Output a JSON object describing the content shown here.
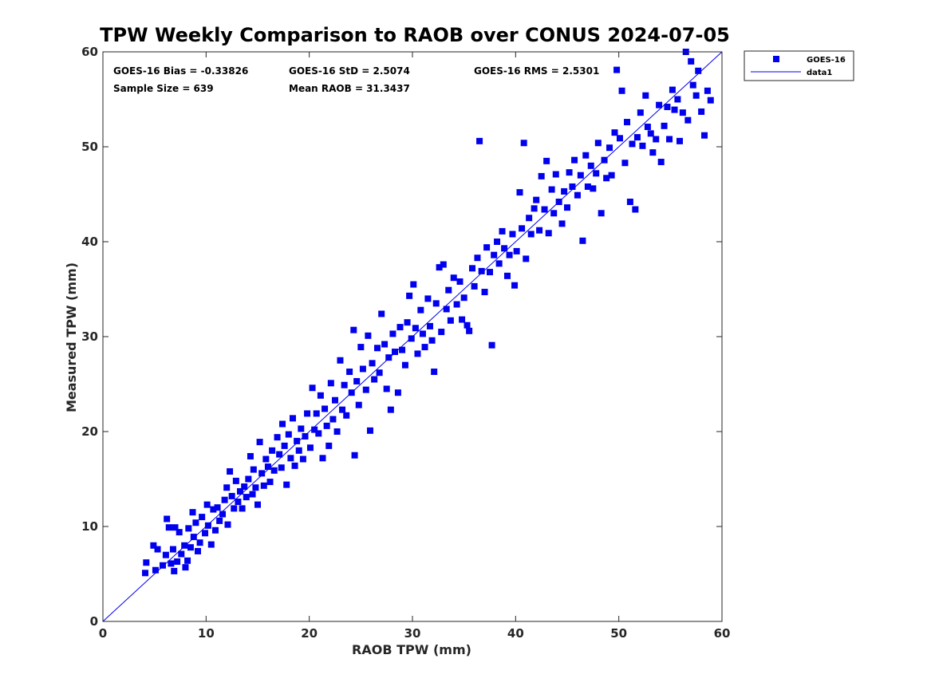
{
  "chart_data": {
    "type": "scatter",
    "title": "TPW Weekly Comparison to RAOB over CONUS 2024-07-05",
    "xlabel": "RAOB TPW (mm)",
    "ylabel": "Measured TPW (mm)",
    "xlim": [
      0,
      60
    ],
    "ylim": [
      0,
      60
    ],
    "xticks": [
      "0",
      "10",
      "20",
      "30",
      "40",
      "50",
      "60"
    ],
    "yticks": [
      "0",
      "10",
      "20",
      "30",
      "40",
      "50",
      "60"
    ],
    "grid": false,
    "legend_position": "outside-top-right",
    "stats": [
      "GOES-16 Bias = -0.33826",
      "GOES-16 StD = 2.5074",
      "GOES-16 RMS = 2.5301",
      "Sample Size = 639",
      "Mean RAOB = 31.3437"
    ],
    "series": [
      {
        "name": "GOES-16",
        "kind": "scatter",
        "marker": "square",
        "color": "#0000ee",
        "points": [
          [
            4.1,
            5.1
          ],
          [
            4.2,
            6.2
          ],
          [
            4.9,
            8.0
          ],
          [
            5.3,
            7.6
          ],
          [
            5.1,
            5.4
          ],
          [
            5.8,
            5.9
          ],
          [
            6.1,
            7.0
          ],
          [
            6.2,
            10.8
          ],
          [
            6.4,
            9.9
          ],
          [
            6.6,
            6.1
          ],
          [
            6.8,
            7.6
          ],
          [
            6.9,
            5.3
          ],
          [
            7.0,
            9.9
          ],
          [
            7.2,
            6.3
          ],
          [
            7.4,
            9.4
          ],
          [
            7.6,
            7.1
          ],
          [
            7.9,
            8.0
          ],
          [
            8.0,
            5.7
          ],
          [
            8.2,
            6.4
          ],
          [
            8.3,
            9.8
          ],
          [
            8.5,
            7.8
          ],
          [
            8.7,
            11.5
          ],
          [
            8.8,
            8.9
          ],
          [
            9.0,
            10.4
          ],
          [
            9.2,
            7.4
          ],
          [
            9.4,
            8.3
          ],
          [
            9.6,
            11.0
          ],
          [
            9.9,
            9.3
          ],
          [
            10.1,
            12.3
          ],
          [
            10.2,
            10.1
          ],
          [
            10.5,
            8.1
          ],
          [
            10.7,
            11.8
          ],
          [
            10.9,
            9.6
          ],
          [
            11.1,
            12.0
          ],
          [
            11.3,
            10.6
          ],
          [
            11.6,
            11.3
          ],
          [
            11.8,
            12.8
          ],
          [
            12.0,
            14.1
          ],
          [
            12.1,
            10.2
          ],
          [
            12.3,
            15.8
          ],
          [
            12.5,
            13.2
          ],
          [
            12.7,
            11.9
          ],
          [
            12.9,
            14.8
          ],
          [
            13.1,
            12.6
          ],
          [
            13.3,
            13.7
          ],
          [
            13.5,
            11.9
          ],
          [
            13.7,
            14.2
          ],
          [
            13.9,
            13.1
          ],
          [
            14.1,
            15.0
          ],
          [
            14.3,
            17.4
          ],
          [
            14.5,
            13.4
          ],
          [
            14.6,
            16.0
          ],
          [
            14.8,
            14.1
          ],
          [
            15.0,
            12.3
          ],
          [
            15.2,
            18.9
          ],
          [
            15.4,
            15.6
          ],
          [
            15.6,
            14.3
          ],
          [
            15.8,
            17.1
          ],
          [
            16.0,
            16.3
          ],
          [
            16.2,
            14.7
          ],
          [
            16.4,
            18.0
          ],
          [
            16.6,
            15.9
          ],
          [
            16.9,
            19.4
          ],
          [
            17.1,
            17.6
          ],
          [
            17.3,
            16.2
          ],
          [
            17.4,
            20.8
          ],
          [
            17.6,
            18.5
          ],
          [
            17.8,
            14.4
          ],
          [
            18.0,
            19.7
          ],
          [
            18.2,
            17.2
          ],
          [
            18.4,
            21.4
          ],
          [
            18.6,
            16.4
          ],
          [
            18.8,
            19.0
          ],
          [
            19.0,
            18.0
          ],
          [
            19.2,
            20.3
          ],
          [
            19.4,
            17.1
          ],
          [
            19.6,
            19.5
          ],
          [
            19.8,
            21.9
          ],
          [
            20.1,
            18.3
          ],
          [
            20.3,
            24.6
          ],
          [
            20.5,
            20.2
          ],
          [
            20.7,
            21.9
          ],
          [
            20.9,
            19.8
          ],
          [
            21.1,
            23.8
          ],
          [
            21.3,
            17.2
          ],
          [
            21.5,
            22.4
          ],
          [
            21.7,
            20.6
          ],
          [
            21.9,
            18.5
          ],
          [
            22.1,
            25.1
          ],
          [
            22.3,
            21.3
          ],
          [
            22.5,
            23.3
          ],
          [
            22.7,
            20.0
          ],
          [
            23.0,
            27.5
          ],
          [
            23.2,
            22.3
          ],
          [
            23.4,
            24.9
          ],
          [
            23.6,
            21.7
          ],
          [
            23.9,
            26.3
          ],
          [
            24.1,
            24.1
          ],
          [
            24.3,
            30.7
          ],
          [
            24.4,
            17.5
          ],
          [
            24.6,
            25.3
          ],
          [
            24.8,
            22.8
          ],
          [
            25.0,
            28.9
          ],
          [
            25.2,
            26.6
          ],
          [
            25.5,
            24.4
          ],
          [
            25.7,
            30.1
          ],
          [
            25.9,
            20.1
          ],
          [
            26.1,
            27.2
          ],
          [
            26.3,
            25.5
          ],
          [
            26.6,
            28.8
          ],
          [
            26.8,
            26.2
          ],
          [
            27.0,
            32.4
          ],
          [
            27.3,
            29.2
          ],
          [
            27.5,
            24.5
          ],
          [
            27.7,
            27.8
          ],
          [
            27.9,
            22.3
          ],
          [
            28.1,
            30.3
          ],
          [
            28.3,
            28.4
          ],
          [
            28.6,
            24.1
          ],
          [
            28.8,
            31.0
          ],
          [
            29.0,
            28.6
          ],
          [
            29.3,
            27.0
          ],
          [
            29.5,
            31.5
          ],
          [
            29.7,
            34.3
          ],
          [
            29.9,
            29.8
          ],
          [
            30.1,
            35.5
          ],
          [
            30.3,
            30.9
          ],
          [
            30.5,
            28.2
          ],
          [
            30.8,
            32.8
          ],
          [
            31.0,
            30.3
          ],
          [
            31.2,
            28.9
          ],
          [
            31.5,
            34.0
          ],
          [
            31.7,
            31.1
          ],
          [
            31.9,
            29.6
          ],
          [
            32.1,
            26.3
          ],
          [
            32.3,
            33.5
          ],
          [
            32.6,
            37.3
          ],
          [
            32.8,
            30.5
          ],
          [
            33.0,
            37.6
          ],
          [
            33.3,
            32.9
          ],
          [
            33.5,
            34.9
          ],
          [
            33.7,
            31.7
          ],
          [
            34.0,
            36.2
          ],
          [
            34.3,
            33.4
          ],
          [
            34.6,
            35.8
          ],
          [
            34.8,
            31.8
          ],
          [
            35.0,
            34.1
          ],
          [
            35.3,
            31.2
          ],
          [
            35.5,
            30.6
          ],
          [
            35.8,
            37.2
          ],
          [
            36.0,
            35.3
          ],
          [
            36.3,
            38.3
          ],
          [
            36.5,
            50.6
          ],
          [
            36.7,
            36.9
          ],
          [
            37.0,
            34.7
          ],
          [
            37.2,
            39.4
          ],
          [
            37.5,
            36.8
          ],
          [
            37.7,
            29.1
          ],
          [
            37.9,
            38.6
          ],
          [
            38.2,
            40.0
          ],
          [
            38.4,
            37.7
          ],
          [
            38.7,
            41.1
          ],
          [
            38.9,
            39.3
          ],
          [
            39.2,
            36.4
          ],
          [
            39.4,
            38.6
          ],
          [
            39.7,
            40.8
          ],
          [
            39.9,
            35.4
          ],
          [
            40.1,
            39.0
          ],
          [
            40.4,
            45.2
          ],
          [
            40.6,
            41.4
          ],
          [
            40.8,
            50.4
          ],
          [
            41.0,
            38.2
          ],
          [
            41.3,
            42.5
          ],
          [
            41.5,
            40.8
          ],
          [
            41.8,
            43.5
          ],
          [
            42.0,
            44.4
          ],
          [
            42.3,
            41.2
          ],
          [
            42.5,
            46.9
          ],
          [
            42.8,
            43.4
          ],
          [
            43.0,
            48.5
          ],
          [
            43.2,
            40.9
          ],
          [
            43.5,
            45.5
          ],
          [
            43.7,
            43.0
          ],
          [
            43.9,
            47.1
          ],
          [
            44.2,
            44.2
          ],
          [
            44.5,
            41.9
          ],
          [
            44.7,
            45.3
          ],
          [
            45.0,
            43.6
          ],
          [
            45.2,
            47.3
          ],
          [
            45.5,
            45.8
          ],
          [
            45.7,
            48.6
          ],
          [
            46.0,
            44.9
          ],
          [
            46.3,
            47.0
          ],
          [
            46.5,
            40.1
          ],
          [
            46.8,
            49.1
          ],
          [
            47.0,
            45.8
          ],
          [
            47.3,
            48.0
          ],
          [
            47.5,
            45.6
          ],
          [
            47.8,
            47.2
          ],
          [
            48.0,
            50.4
          ],
          [
            48.3,
            43.0
          ],
          [
            48.6,
            48.6
          ],
          [
            48.8,
            46.7
          ],
          [
            49.1,
            49.9
          ],
          [
            49.3,
            47.0
          ],
          [
            49.6,
            51.5
          ],
          [
            49.8,
            58.1
          ],
          [
            50.1,
            50.9
          ],
          [
            50.3,
            55.9
          ],
          [
            50.6,
            48.3
          ],
          [
            50.8,
            52.6
          ],
          [
            51.1,
            44.2
          ],
          [
            51.3,
            50.3
          ],
          [
            51.6,
            43.4
          ],
          [
            51.8,
            51.0
          ],
          [
            52.1,
            53.6
          ],
          [
            52.3,
            50.1
          ],
          [
            52.6,
            55.4
          ],
          [
            52.8,
            52.1
          ],
          [
            53.1,
            51.4
          ],
          [
            53.3,
            49.4
          ],
          [
            53.6,
            50.8
          ],
          [
            53.9,
            54.4
          ],
          [
            54.1,
            48.4
          ],
          [
            54.4,
            52.2
          ],
          [
            54.7,
            54.2
          ],
          [
            54.9,
            50.8
          ],
          [
            55.2,
            56.0
          ],
          [
            55.4,
            53.9
          ],
          [
            55.7,
            55.0
          ],
          [
            55.9,
            50.6
          ],
          [
            56.2,
            53.6
          ],
          [
            56.5,
            60.0
          ],
          [
            56.7,
            52.8
          ],
          [
            57.0,
            59.0
          ],
          [
            57.2,
            56.5
          ],
          [
            57.5,
            55.4
          ],
          [
            57.7,
            58.0
          ],
          [
            58.0,
            53.7
          ],
          [
            58.3,
            51.2
          ],
          [
            58.6,
            55.9
          ],
          [
            58.9,
            54.9
          ]
        ]
      },
      {
        "name": "data1",
        "kind": "line",
        "color": "#0000ee",
        "points": [
          [
            0,
            0
          ],
          [
            60,
            60
          ]
        ]
      }
    ]
  }
}
